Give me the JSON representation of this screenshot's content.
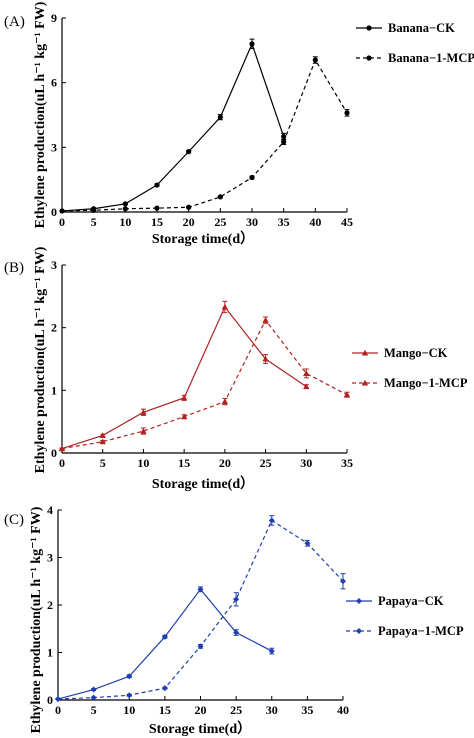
{
  "chart_data": [
    {
      "type": "line",
      "panel_label": "(A)",
      "color": "#000000",
      "xlabel": "Storage time(d）",
      "ylabel": "Ethylene production(uL h⁻¹ kg⁻¹ FW)",
      "xlim": [
        0,
        45
      ],
      "ylim": [
        0,
        9
      ],
      "x_ticks": [
        "0",
        "5",
        "10",
        "15",
        "20",
        "25",
        "30",
        "35",
        "40",
        "45"
      ],
      "y_ticks": [
        "0",
        "3",
        "6",
        "9"
      ],
      "y_tick_values": [
        0,
        3,
        6,
        9
      ],
      "x_tick_values": [
        0,
        5,
        10,
        15,
        20,
        25,
        30,
        35,
        40,
        45
      ],
      "marker": "circle",
      "legend_placement": "right",
      "series": [
        {
          "name": "Banana−CK",
          "dash": "solid",
          "x": [
            0,
            5,
            10,
            15,
            20,
            25,
            30,
            35
          ],
          "y": [
            0.05,
            0.15,
            0.38,
            1.25,
            2.8,
            4.4,
            7.8,
            3.5
          ],
          "err": [
            0.02,
            0.03,
            0.04,
            0.05,
            0.06,
            0.12,
            0.22,
            0.15
          ]
        },
        {
          "name": "Banana−1-MCP",
          "dash": "dashed",
          "x": [
            0,
            5,
            10,
            15,
            20,
            25,
            30,
            35,
            40,
            45
          ],
          "y": [
            0.05,
            0.08,
            0.15,
            0.18,
            0.22,
            0.7,
            1.6,
            3.25,
            7.05,
            4.6
          ],
          "err": [
            0.02,
            0.02,
            0.02,
            0.02,
            0.03,
            0.04,
            0.06,
            0.12,
            0.15,
            0.15
          ]
        }
      ]
    },
    {
      "type": "line",
      "panel_label": "(B)",
      "color": "#b22222",
      "xlabel": "Storage time(d）",
      "ylabel": "Ethylene production(uL h⁻¹ kg⁻¹ FW)",
      "xlim": [
        0,
        35
      ],
      "ylim": [
        0,
        3
      ],
      "x_ticks": [
        "0",
        "5",
        "10",
        "15",
        "20",
        "25",
        "30",
        "35"
      ],
      "y_ticks": [
        "0",
        "1",
        "2",
        "3"
      ],
      "y_tick_values": [
        0,
        1,
        2,
        3
      ],
      "x_tick_values": [
        0,
        5,
        10,
        15,
        20,
        25,
        30,
        35
      ],
      "marker": "triangle",
      "legend_placement": "right",
      "series": [
        {
          "name": "Mango−CK",
          "dash": "solid",
          "x": [
            0,
            5,
            10,
            15,
            20,
            25,
            30
          ],
          "y": [
            0.07,
            0.28,
            0.65,
            0.88,
            2.33,
            1.5,
            1.06
          ],
          "err": [
            0.01,
            0.02,
            0.05,
            0.04,
            0.09,
            0.07,
            0.03
          ]
        },
        {
          "name": "Mango−1-MCP",
          "dash": "dashed",
          "x": [
            0,
            5,
            10,
            15,
            20,
            25,
            30,
            35
          ],
          "y": [
            0.07,
            0.18,
            0.35,
            0.58,
            0.82,
            2.12,
            1.27,
            0.93
          ],
          "err": [
            0.01,
            0.02,
            0.05,
            0.03,
            0.05,
            0.05,
            0.07,
            0.04
          ]
        }
      ]
    },
    {
      "type": "line",
      "panel_label": "(C)",
      "color": "#1f3fb0",
      "xlabel": "Storage time(d）",
      "ylabel": "Ethylene production(uL h⁻¹ kg⁻¹ FW)",
      "xlim": [
        0,
        40
      ],
      "ylim": [
        0,
        4
      ],
      "x_ticks": [
        "0",
        "5",
        "10",
        "15",
        "20",
        "25",
        "30",
        "35",
        "40"
      ],
      "y_ticks": [
        "0",
        "1",
        "2",
        "3",
        "4"
      ],
      "y_tick_values": [
        0,
        1,
        2,
        3,
        4
      ],
      "x_tick_values": [
        0,
        5,
        10,
        15,
        20,
        25,
        30,
        35,
        40
      ],
      "marker": "diamond",
      "legend_placement": "right",
      "series": [
        {
          "name": "Papaya−CK",
          "dash": "solid",
          "x": [
            0,
            5,
            10,
            15,
            20,
            25,
            30
          ],
          "y": [
            0.02,
            0.22,
            0.5,
            1.33,
            2.33,
            1.42,
            1.03
          ],
          "err": [
            0.01,
            0.02,
            0.03,
            0.03,
            0.05,
            0.06,
            0.06
          ]
        },
        {
          "name": "Papaya−1-MCP",
          "dash": "dashed",
          "x": [
            0,
            5,
            10,
            15,
            20,
            25,
            30,
            35,
            40
          ],
          "y": [
            0.02,
            0.05,
            0.1,
            0.25,
            1.13,
            2.12,
            3.78,
            3.3,
            2.5
          ],
          "err": [
            0.01,
            0.01,
            0.02,
            0.02,
            0.04,
            0.14,
            0.1,
            0.06,
            0.16
          ]
        }
      ]
    }
  ]
}
